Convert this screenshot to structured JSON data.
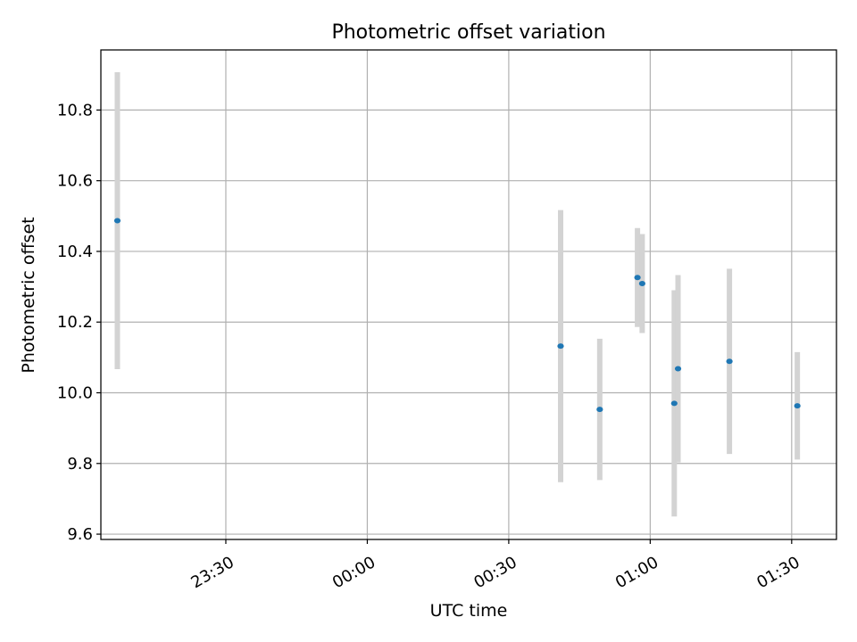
{
  "chart_data": {
    "type": "scatter",
    "title": "Photometric offset variation",
    "xlabel": "UTC time",
    "ylabel": "Photometric offset",
    "x_unit": "minutes from 00:00 UTC",
    "xlim": [
      -56.5,
      99.5
    ],
    "ylim": [
      9.585,
      10.97
    ],
    "x_ticks": [
      -30,
      0,
      30,
      60,
      90
    ],
    "x_tick_labels": [
      "23:30",
      "00:00",
      "00:30",
      "01:00",
      "01:30"
    ],
    "y_ticks": [
      9.6,
      9.8,
      10.0,
      10.2,
      10.4,
      10.6,
      10.8
    ],
    "y_tick_labels": [
      "9.6",
      "9.8",
      "10.0",
      "10.2",
      "10.4",
      "10.6",
      "10.8"
    ],
    "grid": true,
    "series": [
      {
        "marker_color": "#1f77b4",
        "errorbar_color": "#d3d3d3",
        "points": [
          {
            "time": "23:07",
            "x": -53,
            "y": 10.487,
            "yerr": 0.42
          },
          {
            "time": "00:41",
            "x": 41,
            "y": 10.132,
            "yerr": 0.385
          },
          {
            "time": "00:49",
            "x": 49.3,
            "y": 9.953,
            "yerr": 0.2
          },
          {
            "time": "00:57",
            "x": 57.3,
            "y": 10.326,
            "yerr": 0.14
          },
          {
            "time": "00:58",
            "x": 58.3,
            "y": 10.309,
            "yerr": 0.14
          },
          {
            "time": "01:05",
            "x": 65.1,
            "y": 9.97,
            "yerr": 0.32
          },
          {
            "time": "01:06",
            "x": 65.9,
            "y": 10.068,
            "yerr": 0.265
          },
          {
            "time": "01:17",
            "x": 76.8,
            "y": 10.089,
            "yerr": 0.262
          },
          {
            "time": "01:31",
            "x": 91.2,
            "y": 9.963,
            "yerr": 0.152
          }
        ]
      }
    ]
  }
}
